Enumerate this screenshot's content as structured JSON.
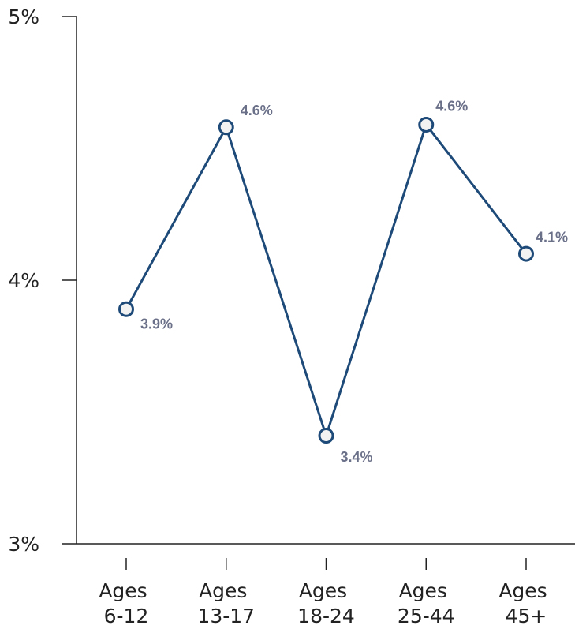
{
  "chart_data": {
    "type": "line",
    "categories": [
      "Ages 6-12",
      "Ages 13-17",
      "Ages 18-24",
      "Ages 25-44",
      "Ages 45+"
    ],
    "series": [
      {
        "name": null,
        "color": "#1d4a78",
        "values": [
          3.89,
          4.58,
          3.41,
          4.59,
          4.1
        ],
        "value_labels": [
          "3.9%",
          "4.6%",
          "3.4%",
          "4.6%",
          "4.1%"
        ]
      }
    ],
    "ylim": [
      3,
      5
    ],
    "yticks": [
      {
        "value": 3,
        "label": "3%"
      },
      {
        "value": 4,
        "label": "4%"
      },
      {
        "value": 5,
        "label": "5%"
      }
    ],
    "grid": false
  }
}
